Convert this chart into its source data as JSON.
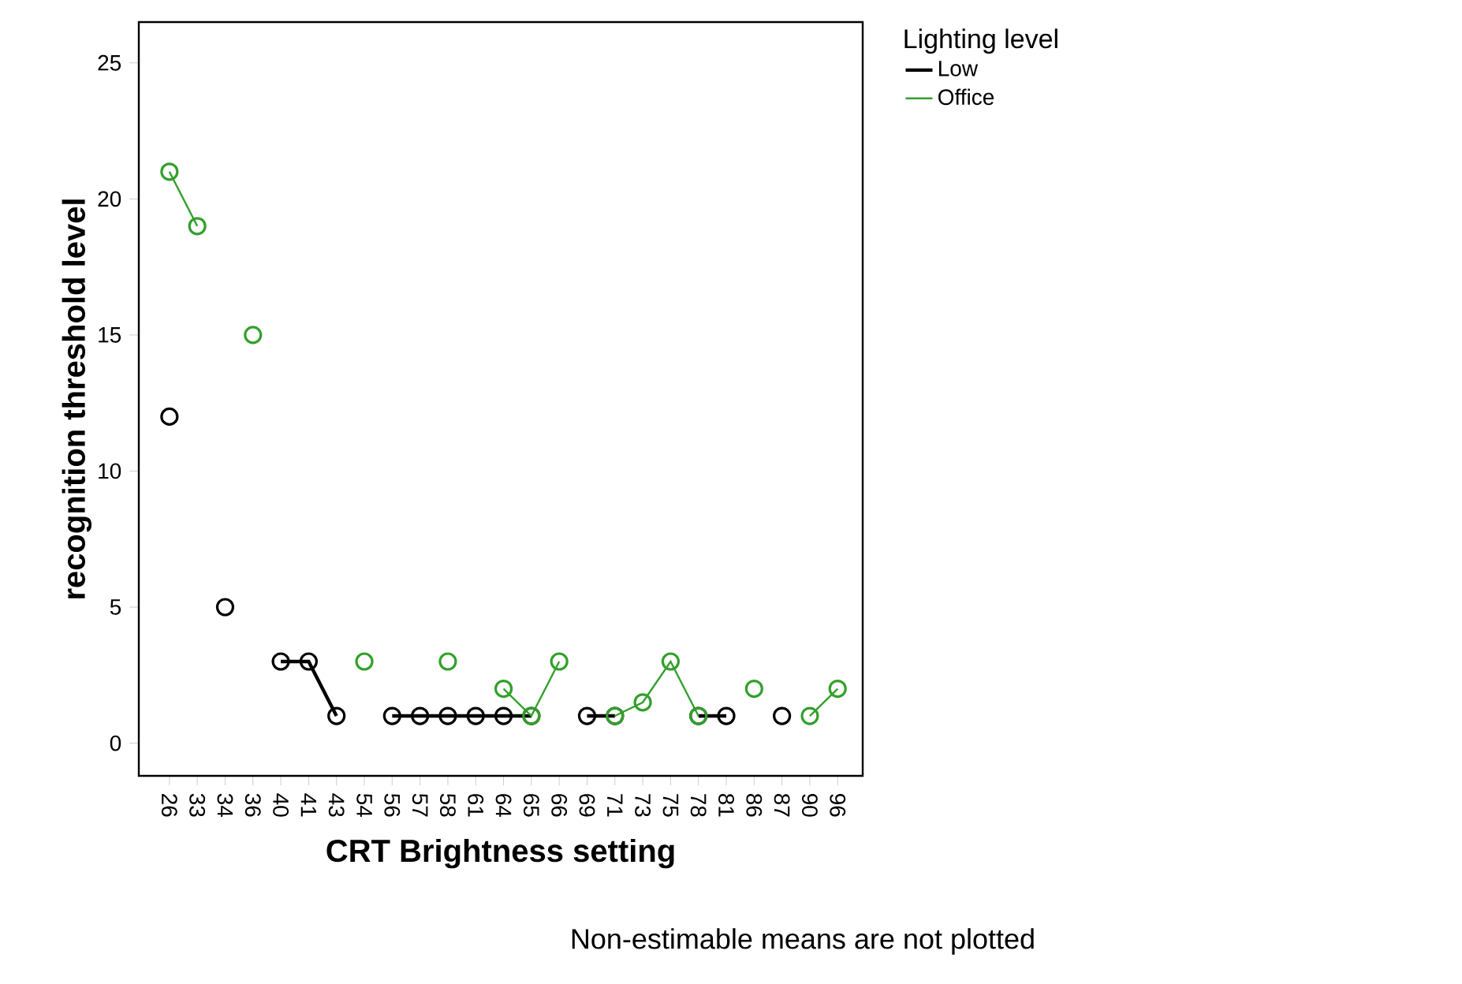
{
  "chart_data": {
    "type": "line",
    "xlabel": "CRT Brightness setting",
    "ylabel": "recognition threshold level",
    "legend_title": "Lighting level",
    "categories": [
      "26",
      "33",
      "34",
      "36",
      "40",
      "41",
      "43",
      "54",
      "56",
      "57",
      "58",
      "61",
      "64",
      "65",
      "66",
      "69",
      "71",
      "73",
      "75",
      "78",
      "81",
      "86",
      "87",
      "90",
      "96"
    ],
    "series": [
      {
        "name": "Low",
        "color": "#000000",
        "values": [
          12,
          null,
          5,
          null,
          3,
          3,
          1,
          null,
          1,
          1,
          1,
          1,
          1,
          1,
          null,
          1,
          1,
          null,
          null,
          1,
          1,
          null,
          1,
          null,
          null
        ]
      },
      {
        "name": "Office",
        "color": "#33a02c",
        "values": [
          21,
          19,
          null,
          15,
          null,
          null,
          null,
          3,
          null,
          null,
          3,
          null,
          2,
          1,
          3,
          null,
          1,
          1.5,
          3,
          1,
          null,
          2,
          null,
          1,
          2
        ]
      }
    ],
    "ylim": [
      -1.2,
      26.5
    ],
    "yticks": [
      0,
      5,
      10,
      15,
      20,
      25
    ],
    "marker": "circle",
    "legend": "top right",
    "annotations": [
      "Non-estimable means are not plotted"
    ]
  }
}
